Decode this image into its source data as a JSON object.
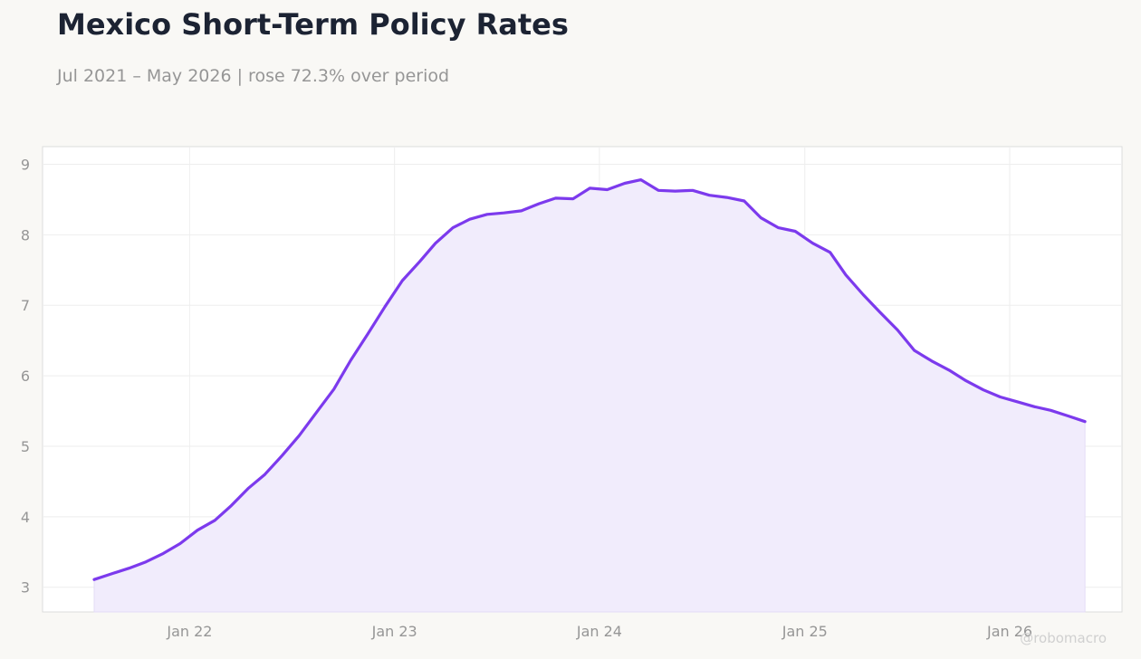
{
  "header": {
    "title": "Mexico Short-Term Policy Rates",
    "subtitle": "Jul 2021 – May 2026 | rose 72.3% over period"
  },
  "watermark": "@robomacro",
  "colors": {
    "line": "#7c3aed",
    "fill": "#f1ecfc",
    "plot_bg": "#ffffff",
    "page_bg": "#f9f8f5",
    "grid": "#eeeeee",
    "text_muted": "#969696",
    "title": "#1c2333"
  },
  "chart_data": {
    "type": "area",
    "title": "Mexico Short-Term Policy Rates",
    "xlabel": "",
    "ylabel": "",
    "grid": true,
    "legend": "none",
    "x": [
      "2021-07",
      "2021-08",
      "2021-09",
      "2021-10",
      "2021-11",
      "2021-12",
      "2022-01",
      "2022-02",
      "2022-03",
      "2022-04",
      "2022-05",
      "2022-06",
      "2022-07",
      "2022-08",
      "2022-09",
      "2022-10",
      "2022-11",
      "2022-12",
      "2023-01",
      "2023-02",
      "2023-03",
      "2023-04",
      "2023-05",
      "2023-06",
      "2023-07",
      "2023-08",
      "2023-09",
      "2023-10",
      "2023-11",
      "2023-12",
      "2024-01",
      "2024-02",
      "2024-03",
      "2024-04",
      "2024-05",
      "2024-06",
      "2024-07",
      "2024-08",
      "2024-09",
      "2024-10",
      "2024-11",
      "2024-12",
      "2025-01",
      "2025-02",
      "2025-03",
      "2025-04",
      "2025-05",
      "2025-06",
      "2025-07",
      "2025-08",
      "2025-09",
      "2025-10",
      "2025-11",
      "2025-12",
      "2026-01",
      "2026-02",
      "2026-03",
      "2026-04",
      "2026-05"
    ],
    "values": [
      3.11,
      3.19,
      3.27,
      3.36,
      3.48,
      3.62,
      3.81,
      3.95,
      4.15,
      4.4,
      4.6,
      4.87,
      5.15,
      5.48,
      5.81,
      6.22,
      6.6,
      6.98,
      7.35,
      7.62,
      7.88,
      8.1,
      8.22,
      8.29,
      8.31,
      8.34,
      8.44,
      8.52,
      8.51,
      8.66,
      8.64,
      8.73,
      8.78,
      8.63,
      8.62,
      8.63,
      8.56,
      8.53,
      8.48,
      8.24,
      8.1,
      8.05,
      7.88,
      7.75,
      7.43,
      7.15,
      6.9,
      6.65,
      6.36,
      6.21,
      6.08,
      5.93,
      5.8,
      5.7,
      5.63,
      5.56,
      5.51,
      5.43,
      5.35
    ],
    "ylim": [
      2.65,
      9.25
    ],
    "xlim": [
      "2021-04-14",
      "2026-07-20"
    ],
    "y_ticks": [
      3,
      4,
      5,
      6,
      7,
      8,
      9
    ],
    "x_ticks": [
      {
        "date": "2022-01-01",
        "label": "Jan 22"
      },
      {
        "date": "2023-01-01",
        "label": "Jan 23"
      },
      {
        "date": "2024-01-01",
        "label": "Jan 24"
      },
      {
        "date": "2025-01-01",
        "label": "Jan 25"
      },
      {
        "date": "2026-01-01",
        "label": "Jan 26"
      }
    ]
  }
}
